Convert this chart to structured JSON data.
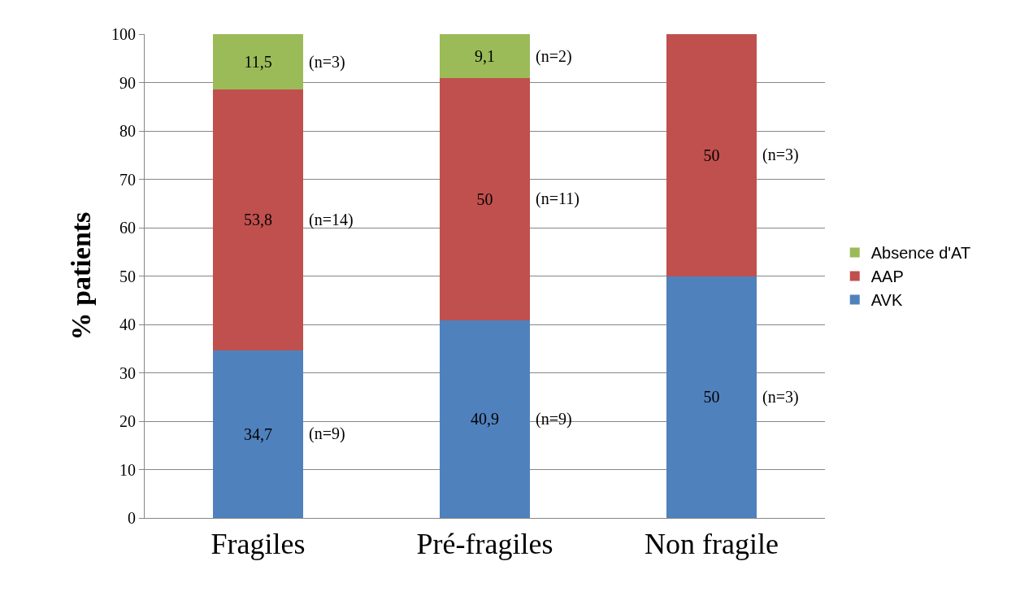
{
  "chart_data": {
    "type": "bar",
    "stacked": true,
    "ylabel": "% patients",
    "categories": [
      "Fragiles",
      "Pré-fragiles",
      "Non fragile"
    ],
    "series": [
      {
        "name": "AVK",
        "color": "#4f81bd",
        "values": [
          34.7,
          40.9,
          50
        ],
        "value_labels": [
          "34,7",
          "40,9",
          "50"
        ]
      },
      {
        "name": "AAP",
        "color": "#c0504d",
        "values": [
          53.8,
          50,
          50
        ],
        "value_labels": [
          "53,8",
          "50",
          "50"
        ]
      },
      {
        "name": "Absence d'AT",
        "color": "#9bbb59",
        "values": [
          11.5,
          9.1,
          null
        ],
        "value_labels": [
          "11,5",
          "9,1",
          null
        ]
      }
    ],
    "ylim": [
      0,
      100
    ],
    "yticks": [
      0,
      10,
      20,
      30,
      40,
      50,
      60,
      70,
      80,
      90,
      100
    ],
    "grid": "y",
    "legend": "right",
    "annotations": [
      "(n=9)",
      "(n=14)",
      "(n=3)",
      "(n=9)",
      "(n=11)",
      "(n=2)",
      "(n=3)",
      "(n=3)"
    ]
  }
}
